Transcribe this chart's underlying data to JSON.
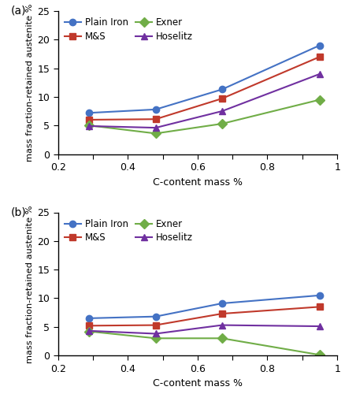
{
  "subplot_a": {
    "label": "(a)",
    "x": [
      0.29,
      0.48,
      0.67,
      0.95
    ],
    "plain_iron": [
      7.2,
      7.8,
      11.3,
      19.0
    ],
    "ms": [
      6.0,
      6.1,
      9.7,
      17.0
    ],
    "exner": [
      5.0,
      3.6,
      5.3,
      9.5
    ],
    "hoselitz": [
      4.9,
      4.6,
      7.5,
      14.0
    ]
  },
  "subplot_b": {
    "label": "(b)",
    "x": [
      0.29,
      0.48,
      0.67,
      0.95
    ],
    "plain_iron": [
      6.5,
      6.8,
      9.1,
      10.5
    ],
    "ms": [
      5.2,
      5.3,
      7.3,
      8.5
    ],
    "exner": [
      4.2,
      3.0,
      3.0,
      0.1
    ],
    "hoselitz": [
      4.3,
      3.8,
      5.3,
      5.1
    ]
  },
  "colors": {
    "plain_iron": "#4472C4",
    "ms": "#C0392B",
    "exner": "#70AD47",
    "hoselitz": "#7030A0"
  },
  "markers": {
    "plain_iron": "o",
    "ms": "s",
    "exner": "D",
    "hoselitz": "^"
  },
  "labels": {
    "plain_iron": "Plain Iron",
    "ms": "M&S",
    "exner": "Exner",
    "hoselitz": "Hoselitz"
  },
  "xlim": [
    0.2,
    1.0
  ],
  "ylim": [
    0,
    25
  ],
  "xticks": [
    0.2,
    0.3,
    0.4,
    0.5,
    0.6,
    0.7,
    0.8,
    0.9,
    1.0
  ],
  "xtick_labels": [
    "0.2",
    "",
    "0.4",
    "",
    "0.6",
    "",
    "0.8",
    "",
    "1"
  ],
  "yticks": [
    0,
    5,
    10,
    15,
    20,
    25
  ],
  "xlabel": "C-content mass %",
  "ylabel": "mass fraction-retained austenite %",
  "linewidth": 1.5,
  "markersize": 6
}
